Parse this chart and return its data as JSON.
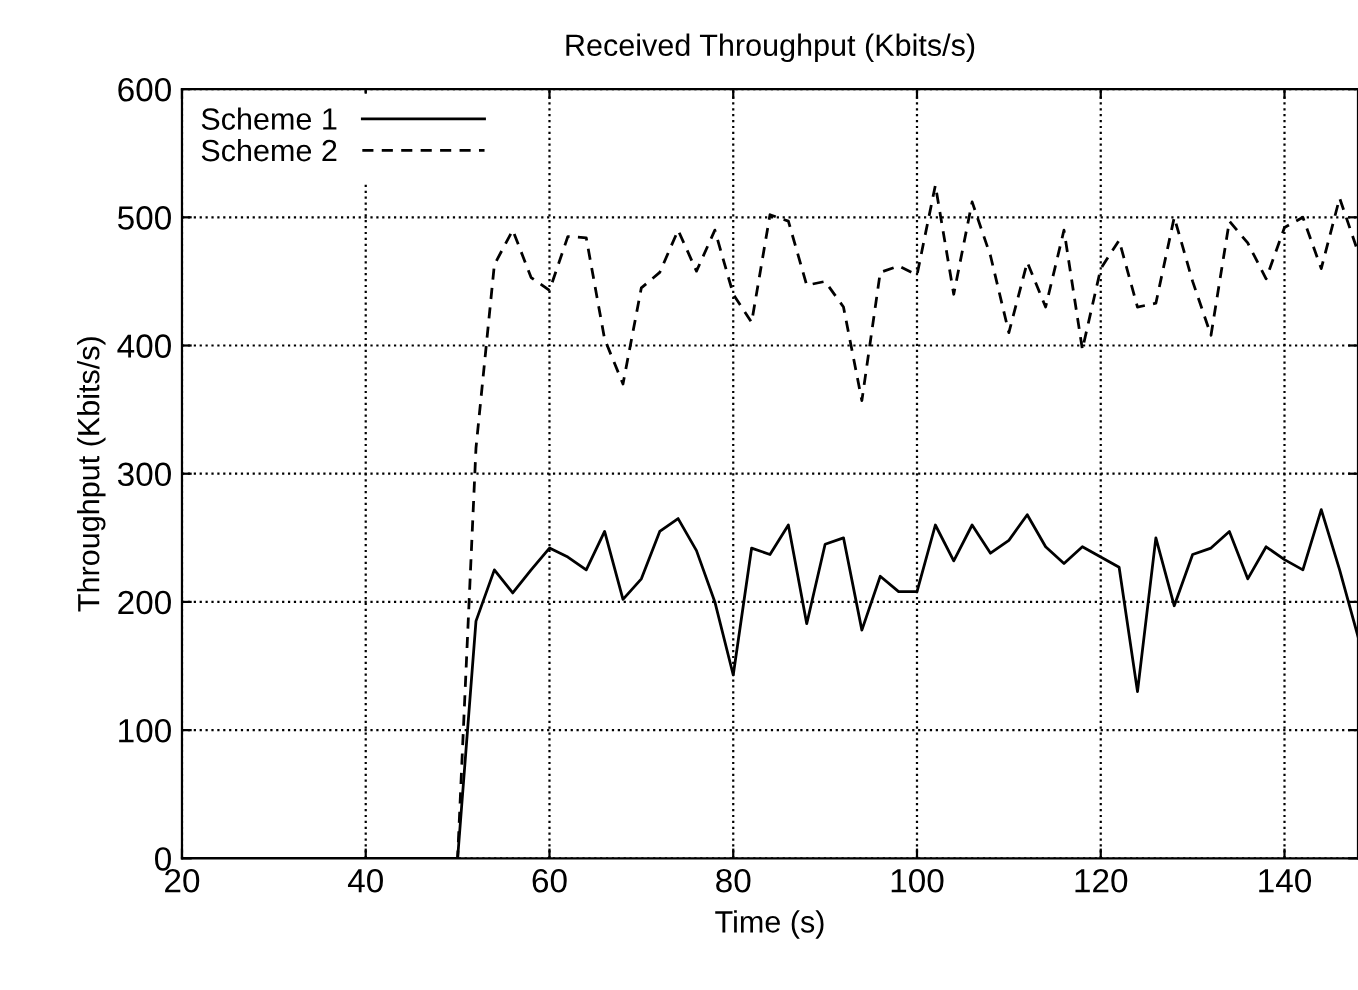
{
  "chart_data": {
    "type": "line",
    "title": "Received Throughput (Kbits/s)",
    "xlabel": "Time (s)",
    "ylabel": "Throughput (Kbits/s)",
    "xlim": [
      20,
      148
    ],
    "xticks": [
      20,
      40,
      60,
      80,
      100,
      120,
      140
    ],
    "ylim": [
      0,
      600
    ],
    "yticks": [
      0,
      100,
      200,
      300,
      400,
      500,
      600
    ],
    "grid": true,
    "legend": "top left",
    "marker": "none",
    "series": [
      {
        "name": "Scheme 1",
        "color": "#000000",
        "line_style": "solid",
        "x": [
          20,
          50,
          52,
          54,
          56,
          58,
          60,
          62,
          64,
          66,
          68,
          70,
          72,
          74,
          76,
          78,
          80,
          82,
          84,
          86,
          88,
          90,
          92,
          94,
          96,
          98,
          100,
          102,
          104,
          106,
          108,
          110,
          112,
          114,
          116,
          118,
          120,
          122,
          124,
          126,
          128,
          130,
          132,
          134,
          136,
          138,
          140,
          142,
          144,
          146,
          148
        ],
        "values": [
          0,
          0,
          185,
          225,
          207,
          225,
          242,
          235,
          225,
          255,
          202,
          218,
          255,
          265,
          240,
          200,
          143,
          242,
          237,
          260,
          183,
          245,
          250,
          178,
          220,
          208,
          208,
          260,
          232,
          260,
          238,
          248,
          268,
          243,
          230,
          243,
          235,
          227,
          130,
          250,
          197,
          237,
          242,
          255,
          218,
          243,
          233,
          225,
          272,
          225,
          173
        ]
      },
      {
        "name": "Scheme 2",
        "color": "#000000",
        "line_style": "dashed",
        "x": [
          20,
          50,
          52,
          54,
          56,
          58,
          60,
          62,
          64,
          66,
          68,
          70,
          72,
          74,
          76,
          78,
          80,
          82,
          84,
          86,
          88,
          90,
          92,
          94,
          96,
          98,
          100,
          102,
          104,
          106,
          108,
          110,
          112,
          114,
          116,
          118,
          120,
          122,
          124,
          126,
          128,
          130,
          132,
          134,
          136,
          138,
          140,
          142,
          144,
          146,
          148
        ],
        "values": [
          0,
          0,
          320,
          463,
          490,
          453,
          443,
          485,
          484,
          405,
          370,
          445,
          457,
          490,
          458,
          490,
          440,
          418,
          502,
          497,
          447,
          450,
          430,
          357,
          457,
          462,
          455,
          525,
          440,
          512,
          470,
          410,
          465,
          430,
          490,
          397,
          460,
          482,
          430,
          433,
          500,
          450,
          408,
          497,
          480,
          452,
          492,
          500,
          460,
          515,
          473
        ]
      }
    ]
  }
}
